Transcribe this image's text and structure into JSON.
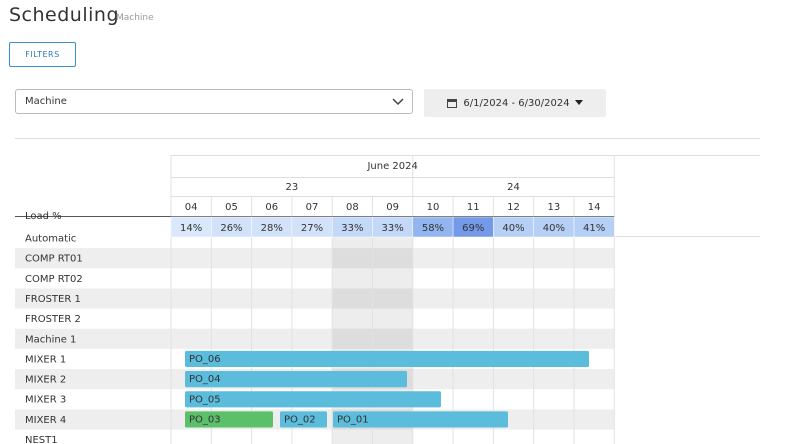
{
  "header": {
    "title": "Scheduling",
    "subtitle": "Machine"
  },
  "filters_button": "FILTERS",
  "machine_select": "Machine",
  "date_range": "6/1/2024 - 6/30/2024",
  "gantt": {
    "month": "June 2024",
    "weeks": [
      "23",
      "24"
    ],
    "days": [
      "04",
      "05",
      "06",
      "07",
      "08",
      "09",
      "10",
      "11",
      "12",
      "13",
      "14"
    ],
    "load_label": "Load %",
    "loads": [
      {
        "text": "14%",
        "color": "#d9e8fb"
      },
      {
        "text": "26%",
        "color": "#d1e2f9"
      },
      {
        "text": "28%",
        "color": "#d1e2f9"
      },
      {
        "text": "27%",
        "color": "#d1e2f9"
      },
      {
        "text": "33%",
        "color": "#c2d8f6"
      },
      {
        "text": "33%",
        "color": "#c2d8f6"
      },
      {
        "text": "58%",
        "color": "#92b5f0"
      },
      {
        "text": "69%",
        "color": "#7399e8"
      },
      {
        "text": "40%",
        "color": "#b6cff4"
      },
      {
        "text": "40%",
        "color": "#b6cff4"
      },
      {
        "text": "41%",
        "color": "#b6cff4"
      }
    ],
    "rows": [
      "Automatic",
      "COMP RT01",
      "COMP RT02",
      "FROSTER 1",
      "FROSTER 2",
      "Machine 1",
      "MIXER 1",
      "MIXER 2",
      "MIXER 3",
      "MIXER 4",
      "NEST1"
    ],
    "bars": [
      {
        "label": "PO_06",
        "color": "#5bbcdc"
      },
      {
        "label": "PO_04",
        "color": "#5bbcdc"
      },
      {
        "label": "PO_05",
        "color": "#5bbcdc"
      },
      {
        "label": "PO_03",
        "color": "#5cbf6a"
      },
      {
        "label": "PO_02",
        "color": "#5bbcdc"
      },
      {
        "label": "PO_01",
        "color": "#5bbcdc"
      }
    ]
  }
}
